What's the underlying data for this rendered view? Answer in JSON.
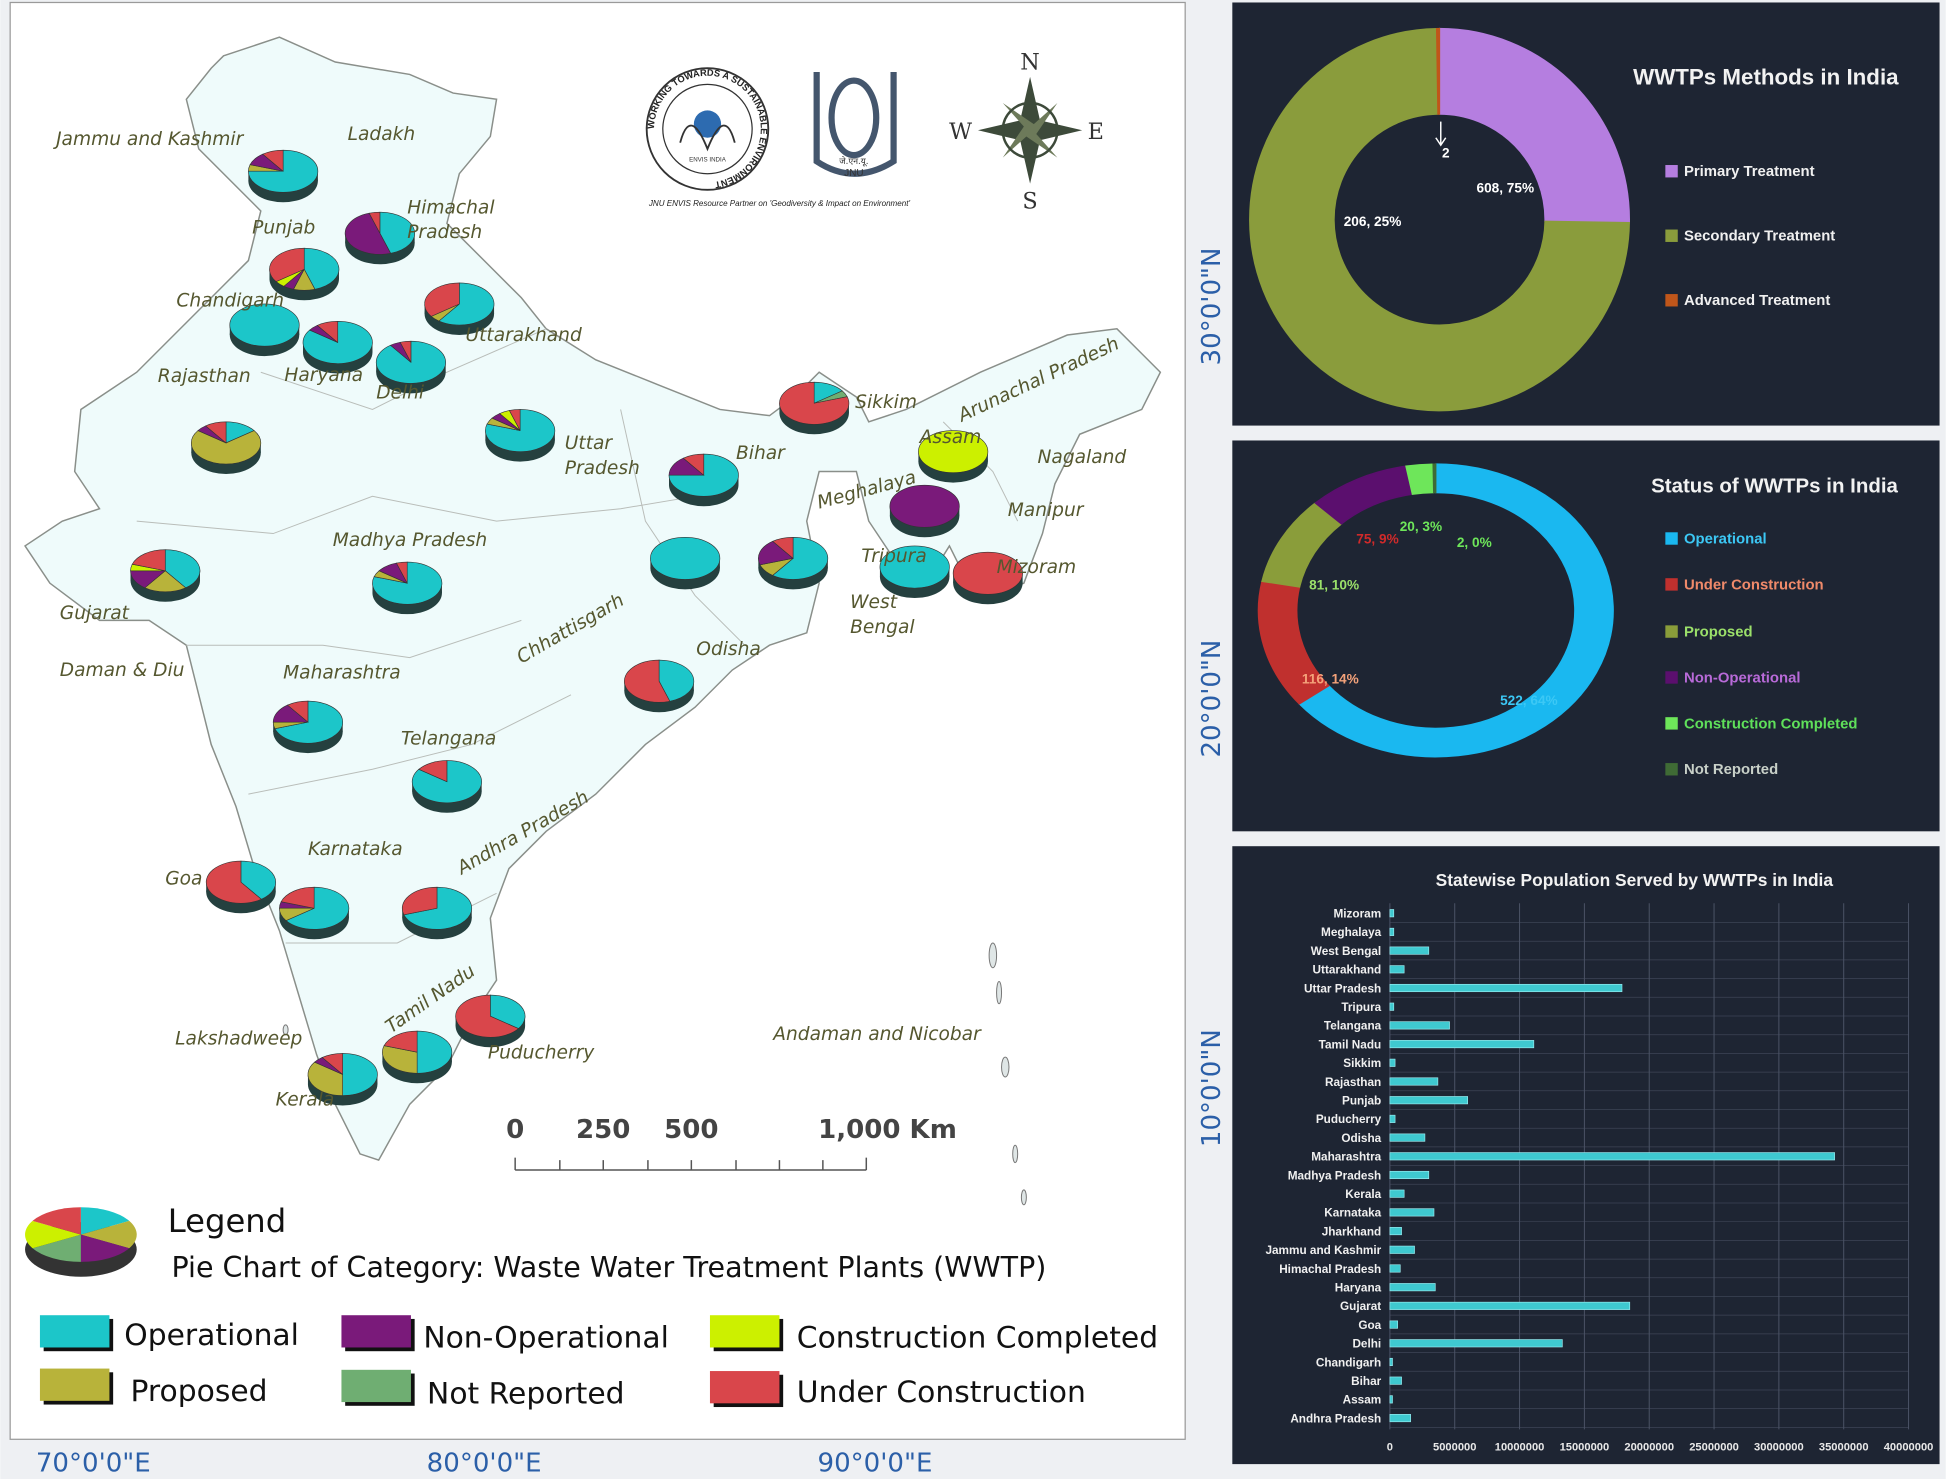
{
  "map": {
    "labels": [
      [
        "Jammu and Kashmir"
      ],
      [
        "Ladakh"
      ],
      [
        "Himachal",
        "Pradesh"
      ],
      [
        "Punjab"
      ],
      [
        "Chandigarh"
      ],
      [
        "Uttarakhand"
      ],
      [
        "Rajasthan"
      ],
      [
        "Haryana"
      ],
      [
        "Delhi"
      ],
      [
        "Uttar",
        "Pradesh"
      ],
      [
        "Sikkim"
      ],
      [
        "Arunachal Pradesh"
      ],
      [
        "Assam"
      ],
      [
        "Nagaland"
      ],
      [
        "Bihar"
      ],
      [
        "Meghalaya"
      ],
      [
        "Manipur"
      ],
      [
        "Madhya Pradesh"
      ],
      [
        "Tripura"
      ],
      [
        "Mizoram"
      ],
      [
        "Gujarat"
      ],
      [
        "West",
        "Bengal"
      ],
      [
        "Chhattisgarh"
      ],
      [
        "Daman & Diu"
      ],
      [
        "Odisha"
      ],
      [
        "Maharashtra"
      ],
      [
        "Telangana"
      ],
      [
        "Andhra Pradesh"
      ],
      [
        "Karnataka"
      ],
      [
        "Goa"
      ],
      [
        "Tamil Nadu"
      ],
      [
        "Lakshadweep"
      ],
      [
        "Puducherry"
      ],
      [
        "Kerala"
      ],
      [
        "Andaman and Nicobar"
      ]
    ],
    "pies": [
      [
        75,
        5,
        10,
        0,
        0,
        10
      ],
      [
        45,
        0,
        50,
        0,
        0,
        5
      ],
      [
        45,
        10,
        5,
        0,
        5,
        35
      ],
      [
        60,
        5,
        0,
        0,
        0,
        35
      ],
      [
        100,
        0,
        0,
        0,
        0,
        0
      ],
      [
        85,
        0,
        5,
        0,
        0,
        10
      ],
      [
        90,
        0,
        5,
        0,
        0,
        5
      ],
      [
        15,
        70,
        5,
        0,
        0,
        10
      ],
      [
        80,
        5,
        5,
        0,
        5,
        5
      ],
      [
        15,
        0,
        0,
        5,
        0,
        80
      ],
      [
        75,
        0,
        15,
        0,
        0,
        10
      ],
      [
        0,
        0,
        0,
        0,
        100,
        0
      ],
      [
        0,
        0,
        100,
        0,
        0,
        0
      ],
      [
        40,
        20,
        15,
        0,
        5,
        20
      ],
      [
        80,
        5,
        10,
        0,
        0,
        5
      ],
      [
        100,
        0,
        0,
        0,
        0,
        0
      ],
      [
        60,
        10,
        20,
        0,
        0,
        10
      ],
      [
        100,
        0,
        0,
        0,
        0,
        0
      ],
      [
        0,
        0,
        0,
        0,
        0,
        100
      ],
      [
        45,
        0,
        0,
        0,
        0,
        55
      ],
      [
        70,
        5,
        15,
        0,
        0,
        10
      ],
      [
        85,
        0,
        0,
        0,
        0,
        15
      ],
      [
        40,
        0,
        0,
        0,
        0,
        60
      ],
      [
        65,
        10,
        5,
        0,
        0,
        20
      ],
      [
        70,
        0,
        0,
        0,
        0,
        30
      ],
      [
        35,
        0,
        0,
        0,
        0,
        65
      ],
      [
        50,
        30,
        0,
        0,
        0,
        20
      ],
      [
        50,
        35,
        5,
        0,
        0,
        10
      ]
    ],
    "logo_ring": "WORKING TOWARDS A SUSTAINABLE ENVIRONMENT",
    "logo_inner": "ENVIS INDIA",
    "jnu": "JNU",
    "jnu_hindi": "जे.एन.यू.",
    "caption": "JNU ENVIS Resource Partner on 'Geodiversity & Impact on Environment'",
    "compass": {
      "n": "N",
      "w": "W",
      "e": "E",
      "s": "S"
    },
    "scale_labels": [
      "0",
      "250",
      "500",
      "1,000 Km"
    ],
    "legend": {
      "title": "Legend",
      "subtitle": "Pie Chart of Category: Waste Water Treatment Plants (WWTP)",
      "items": [
        {
          "label": "Operational",
          "color": "#1cc6c9"
        },
        {
          "label": "Proposed",
          "color": "#b8b33a"
        },
        {
          "label": "Non-Operational",
          "color": "#7a1a7a"
        },
        {
          "label": "Not Reported",
          "color": "#6fae72"
        },
        {
          "label": "Construction Completed",
          "color": "#ccf000"
        },
        {
          "label": "Under Construction",
          "color": "#d9464b"
        }
      ]
    },
    "lat_labels": [
      "30°0'0\"N",
      "20°0'0\"N",
      "10°0'0\"N"
    ],
    "lon_labels": [
      "70°0'0\"E",
      "80°0'0\"E",
      "90°0'0\"E"
    ]
  },
  "chart_data": [
    {
      "type": "donut",
      "title": "WWTPs Methods in India",
      "categories": [
        "Primary Treatment",
        "Secondary Treatment",
        "Advanced Treatment"
      ],
      "values": [
        206,
        608,
        2
      ],
      "value_labels": [
        "206, 25%",
        "608, 75%",
        "2"
      ],
      "colors": [
        "#b57ee0",
        "#8a9c3c",
        "#c0561a"
      ]
    },
    {
      "type": "donut",
      "title": "Status of WWTPs in India",
      "categories": [
        "Operational",
        "Under Construction",
        "Proposed",
        "Non-Operational",
        "Construction Completed",
        "Not Reported"
      ],
      "values": [
        522,
        116,
        81,
        75,
        20,
        2
      ],
      "value_labels": [
        "522, 64%",
        "116, 14%",
        "81, 10%",
        "75, 9%",
        "20, 3%",
        "2, 0%"
      ],
      "colors": [
        "#1ab8f0",
        "#c0302e",
        "#8a9d3a",
        "#5b0f6e",
        "#6ee65a",
        "#3f6b35"
      ],
      "label_colors": [
        "#3cc8f5",
        "#f4a27a",
        "#9be06a",
        "#d02a2a",
        "#6ee65a",
        "#6ee65a"
      ],
      "legend_text_colors": [
        "#3cc8f5",
        "#f08a6a",
        "#9be06a",
        "#b86ad8",
        "#5fe05a",
        "#c8d0c8"
      ]
    },
    {
      "type": "bar",
      "orientation": "horizontal",
      "title": "Statewise Population Served by WWTPs in India",
      "categories": [
        "Mizoram",
        "Meghalaya",
        "West Bengal",
        "Uttarakhand",
        "Uttar Pradesh",
        "Tripura",
        "Telangana",
        "Tamil Nadu",
        "Sikkim",
        "Rajasthan",
        "Punjab",
        "Puducherry",
        "Odisha",
        "Maharashtra",
        "Madhya Pradesh",
        "Kerala",
        "Karnataka",
        "Jharkhand",
        "Jammu and Kashmir",
        "Himachal Pradesh",
        "Haryana",
        "Gujarat",
        "Goa",
        "Delhi",
        "Chandigarh",
        "Bihar",
        "Assam",
        "Andhra Pradesh"
      ],
      "values": [
        300000,
        300000,
        3000000,
        1100000,
        17900000,
        300000,
        4600000,
        11100000,
        400000,
        3700000,
        6000000,
        400000,
        2700000,
        34300000,
        3000000,
        1100000,
        3400000,
        900000,
        1900000,
        800000,
        3500000,
        18500000,
        600000,
        13300000,
        200000,
        900000,
        200000,
        1600000
      ],
      "color": "#3fc9d0",
      "xlim": [
        0,
        40000000
      ],
      "xticks": [
        0,
        5000000,
        10000000,
        15000000,
        20000000,
        25000000,
        30000000,
        35000000,
        40000000
      ],
      "grid": true
    }
  ]
}
